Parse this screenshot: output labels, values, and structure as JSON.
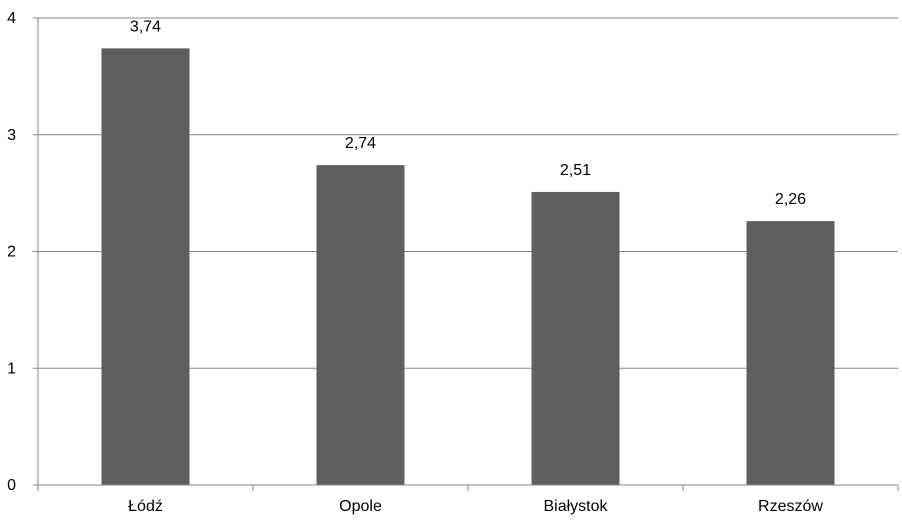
{
  "chart_data": {
    "type": "bar",
    "categories": [
      "Łódź",
      "Opole",
      "Białystok",
      "Rzeszów"
    ],
    "values": [
      3.74,
      2.74,
      2.51,
      2.26
    ],
    "value_labels": [
      "3,74",
      "2,74",
      "2,51",
      "2,26"
    ],
    "y_ticks": [
      0,
      1,
      2,
      3,
      4
    ],
    "y_tick_labels": [
      "0",
      "1",
      "2",
      "3",
      "4"
    ],
    "ylim": [
      0,
      4
    ],
    "grid": true,
    "legend": "none",
    "bar_color": "#5f5f5f",
    "grid_color": "#868686",
    "axis_color": "#868686"
  }
}
